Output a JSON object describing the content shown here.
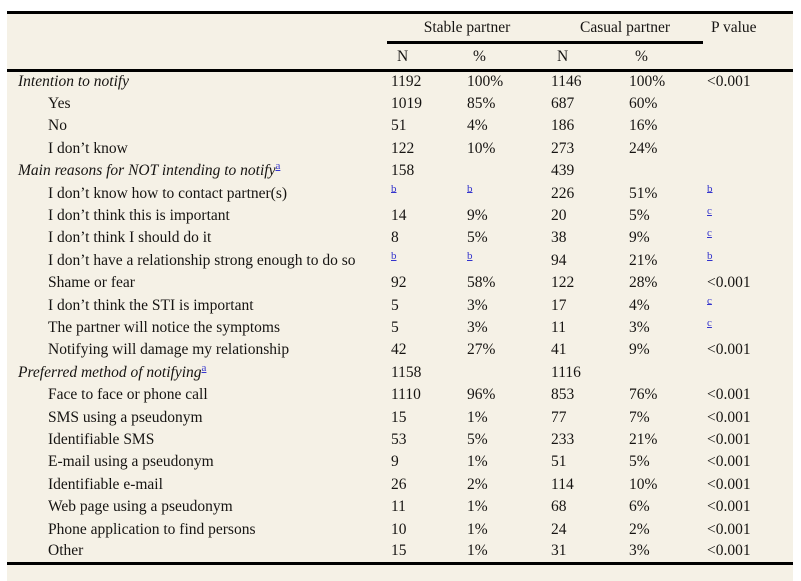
{
  "colors": {
    "page_background": "#ffffff",
    "table_background": "#f5f1e6",
    "rule": "#000000",
    "text": "#161412",
    "link": "#3333cc"
  },
  "table": {
    "groups": [
      "Stable partner",
      "Casual partner"
    ],
    "pvalue_header": "P value",
    "subheaders": [
      "N",
      "%",
      "N",
      "%"
    ],
    "footnote_letters": [
      "a",
      "b",
      "c"
    ],
    "column_names": [
      "stable-n",
      "stable-pct",
      "casual-n",
      "casual-pct",
      "p-value"
    ],
    "rows": [
      {
        "label": "Intention to notify",
        "type": "section",
        "sup": "",
        "cells": [
          "1192",
          "100%",
          "1146",
          "100%",
          "<0.001"
        ]
      },
      {
        "label": "Yes",
        "type": "item",
        "sup": "",
        "cells": [
          "1019",
          "85%",
          "687",
          "60%",
          ""
        ]
      },
      {
        "label": "No",
        "type": "item",
        "sup": "",
        "cells": [
          "51",
          "4%",
          "186",
          "16%",
          ""
        ]
      },
      {
        "label": "I don’t know",
        "type": "item",
        "sup": "",
        "cells": [
          "122",
          "10%",
          "273",
          "24%",
          ""
        ]
      },
      {
        "label": "Main reasons for NOT intending to notify",
        "type": "section",
        "sup": "a",
        "cells": [
          "158",
          "",
          "439",
          "",
          ""
        ]
      },
      {
        "label": "I don’t know how to contact partner(s)",
        "type": "item",
        "sup": "",
        "cells": [
          "b",
          "b",
          "226",
          "51%",
          "b"
        ]
      },
      {
        "label": "I don’t think this is important",
        "type": "item",
        "sup": "",
        "cells": [
          "14",
          "9%",
          "20",
          "5%",
          "c"
        ]
      },
      {
        "label": "I don’t think I should do it",
        "type": "item",
        "sup": "",
        "cells": [
          "8",
          "5%",
          "38",
          "9%",
          "c"
        ]
      },
      {
        "label": "I don’t have a relationship strong enough to do so",
        "type": "item",
        "sup": "",
        "cells": [
          "b",
          "b",
          "94",
          "21%",
          "b"
        ]
      },
      {
        "label": "Shame or fear",
        "type": "item",
        "sup": "",
        "cells": [
          "92",
          "58%",
          "122",
          "28%",
          "<0.001"
        ]
      },
      {
        "label": "I don’t think the STI is important",
        "type": "item",
        "sup": "",
        "cells": [
          "5",
          "3%",
          "17",
          "4%",
          "c"
        ]
      },
      {
        "label": "The partner will notice the symptoms",
        "type": "item",
        "sup": "",
        "cells": [
          "5",
          "3%",
          "11",
          "3%",
          "c"
        ]
      },
      {
        "label": "Notifying will damage my relationship",
        "type": "item",
        "sup": "",
        "cells": [
          "42",
          "27%",
          "41",
          "9%",
          "<0.001"
        ]
      },
      {
        "label": "Preferred method of notifying",
        "type": "section",
        "sup": "a",
        "cells": [
          "1158",
          "",
          "1116",
          "",
          ""
        ]
      },
      {
        "label": "Face to face or phone call",
        "type": "item",
        "sup": "",
        "cells": [
          "1110",
          "96%",
          "853",
          "76%",
          "<0.001"
        ]
      },
      {
        "label": "SMS using a pseudonym",
        "type": "item",
        "sup": "",
        "cells": [
          "15",
          "1%",
          "77",
          "7%",
          "<0.001"
        ]
      },
      {
        "label": "Identifiable SMS",
        "type": "item",
        "sup": "",
        "cells": [
          "53",
          "5%",
          "233",
          "21%",
          "<0.001"
        ]
      },
      {
        "label": "E-mail using a pseudonym",
        "type": "item",
        "sup": "",
        "cells": [
          "9",
          "1%",
          "51",
          "5%",
          "<0.001"
        ]
      },
      {
        "label": "Identifiable e-mail",
        "type": "item",
        "sup": "",
        "cells": [
          "26",
          "2%",
          "114",
          "10%",
          "<0.001"
        ]
      },
      {
        "label": "Web page using a pseudonym",
        "type": "item",
        "sup": "",
        "cells": [
          "11",
          "1%",
          "68",
          "6%",
          "<0.001"
        ]
      },
      {
        "label": "Phone application to find persons",
        "type": "item",
        "sup": "",
        "cells": [
          "10",
          "1%",
          "24",
          "2%",
          "<0.001"
        ]
      },
      {
        "label": "Other",
        "type": "item",
        "sup": "",
        "cells": [
          "15",
          "1%",
          "31",
          "3%",
          "<0.001"
        ]
      }
    ]
  }
}
